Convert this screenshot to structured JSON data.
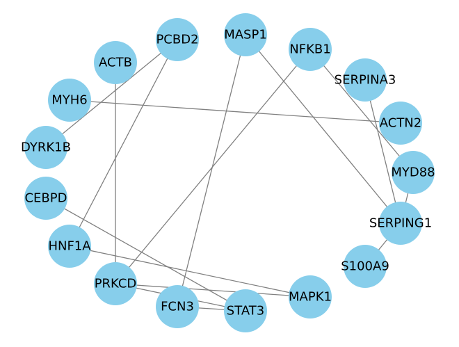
{
  "graph": {
    "node_color": "#87CEEB",
    "edge_color": "#808080",
    "label_color": "#000000",
    "nodes": [
      {
        "id": "MASP1",
        "label": "MASP1"
      },
      {
        "id": "PCBD2",
        "label": "PCBD2"
      },
      {
        "id": "NFKB1",
        "label": "NFKB1"
      },
      {
        "id": "ACTB",
        "label": "ACTB"
      },
      {
        "id": "SERPINA3",
        "label": "SERPINA3"
      },
      {
        "id": "MYH6",
        "label": "MYH6"
      },
      {
        "id": "ACTN2",
        "label": "ACTN2"
      },
      {
        "id": "DYRK1B",
        "label": "DYRK1B"
      },
      {
        "id": "MYD88",
        "label": "MYD88"
      },
      {
        "id": "CEBPD",
        "label": "CEBPD"
      },
      {
        "id": "SERPING1",
        "label": "SERPING1"
      },
      {
        "id": "HNF1A",
        "label": "HNF1A"
      },
      {
        "id": "S100A9",
        "label": "S100A9"
      },
      {
        "id": "PRKCD",
        "label": "PRKCD"
      },
      {
        "id": "MAPK1",
        "label": "MAPK1"
      },
      {
        "id": "FCN3",
        "label": "FCN3"
      },
      {
        "id": "STAT3",
        "label": "STAT3"
      }
    ],
    "edges": [
      [
        "MASP1",
        "FCN3"
      ],
      [
        "MASP1",
        "SERPING1"
      ],
      [
        "PCBD2",
        "DYRK1B"
      ],
      [
        "PCBD2",
        "HNF1A"
      ],
      [
        "ACTB",
        "PRKCD"
      ],
      [
        "MYH6",
        "ACTN2"
      ],
      [
        "NFKB1",
        "PRKCD"
      ],
      [
        "NFKB1",
        "MYD88"
      ],
      [
        "SERPINA3",
        "SERPING1"
      ],
      [
        "MYD88",
        "SERPING1"
      ],
      [
        "SERPING1",
        "S100A9"
      ],
      [
        "CEBPD",
        "STAT3"
      ],
      [
        "HNF1A",
        "MAPK1"
      ],
      [
        "PRKCD",
        "MAPK1"
      ],
      [
        "PRKCD",
        "STAT3"
      ],
      [
        "FCN3",
        "STAT3"
      ]
    ]
  }
}
